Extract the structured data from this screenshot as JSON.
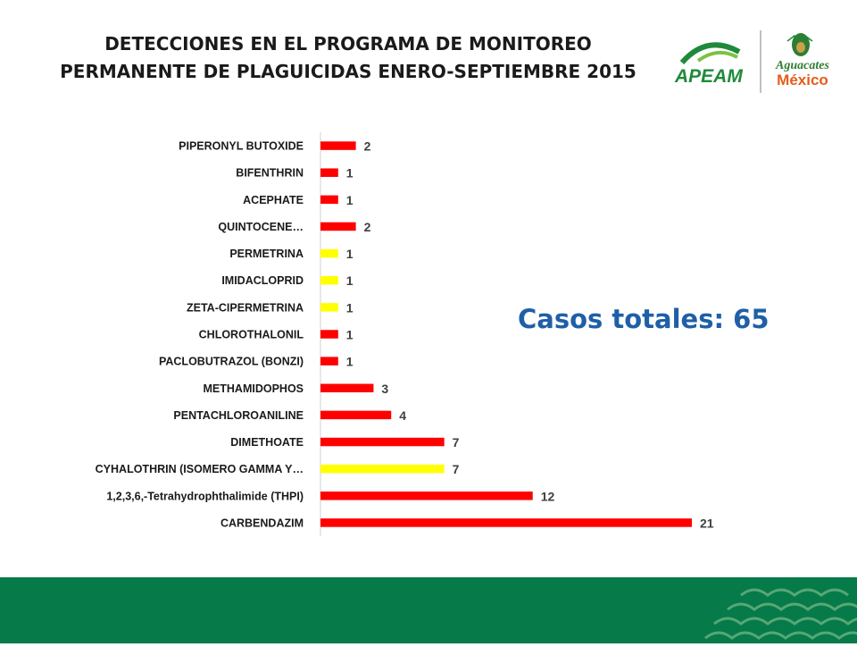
{
  "slide": {
    "title_line1": "DETECCIONES EN EL PROGRAMA DE MONITOREO",
    "title_line2": "PERMANENTE DE PLAGUICIDAS ENERO-SEPTIEMBRE 2015",
    "total_label": "Casos totales: 65",
    "logo_left_text": "APEAM",
    "logo_right_text_top": "Aguacates",
    "logo_right_text_bottom": "México",
    "colors": {
      "footer": "#077a4a",
      "accent_text": "#1f5fa8"
    }
  },
  "chart_data": {
    "type": "bar",
    "orientation": "horizontal",
    "categories": [
      "PIPERONYL BUTOXIDE",
      "BIFENTHRIN",
      "ACEPHATE",
      "QUINTOCENE…",
      "PERMETRINA",
      "IMIDACLOPRID",
      "ZETA-CIPERMETRINA",
      "CHLOROTHALONIL",
      "PACLOBUTRAZOL (BONZI)",
      "METHAMIDOPHOS",
      "PENTACHLOROANILINE",
      "DIMETHOATE",
      "CYHALOTHRIN (ISOMERO GAMMA Y…",
      "1,2,3,6,-Tetrahydrophthalimide (THPI)",
      "CARBENDAZIM"
    ],
    "values": [
      2,
      1,
      1,
      2,
      1,
      1,
      1,
      1,
      1,
      3,
      4,
      7,
      7,
      12,
      21
    ],
    "bar_colors": [
      "#ff0000",
      "#ff0000",
      "#ff0000",
      "#ff0000",
      "#ffff00",
      "#ffff00",
      "#ffff00",
      "#ff0000",
      "#ff0000",
      "#ff0000",
      "#ff0000",
      "#ff0000",
      "#ffff00",
      "#ff0000",
      "#ff0000"
    ],
    "xlim": [
      0,
      22
    ],
    "data_labels": true,
    "grid": false,
    "legend": "none"
  }
}
